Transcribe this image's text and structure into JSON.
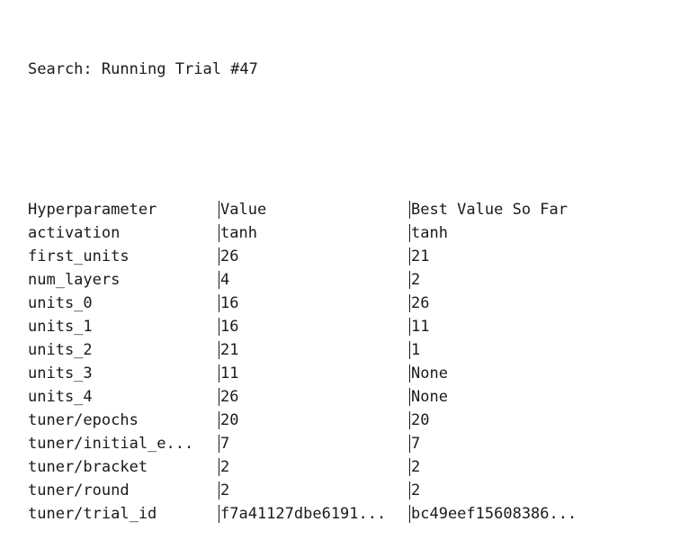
{
  "status": {
    "text": "Search: Running Trial #47"
  },
  "table": {
    "headers": [
      "Hyperparameter",
      "Value",
      "Best Value So Far"
    ],
    "rows": [
      [
        "activation",
        "tanh",
        "tanh"
      ],
      [
        "first_units",
        "26",
        "21"
      ],
      [
        "num_layers",
        "4",
        "2"
      ],
      [
        "units_0",
        "16",
        "26"
      ],
      [
        "units_1",
        "16",
        "11"
      ],
      [
        "units_2",
        "21",
        "1"
      ],
      [
        "units_3",
        "11",
        "None"
      ],
      [
        "units_4",
        "26",
        "None"
      ],
      [
        "tuner/epochs",
        "20",
        "20"
      ],
      [
        "tuner/initial_e...",
        "7",
        "7"
      ],
      [
        "tuner/bracket",
        "2",
        "2"
      ],
      [
        "tuner/round",
        "2",
        "2"
      ],
      [
        "tuner/trial_id",
        "f7a41127dbe6191...",
        "bc49eef15608386..."
      ]
    ]
  }
}
